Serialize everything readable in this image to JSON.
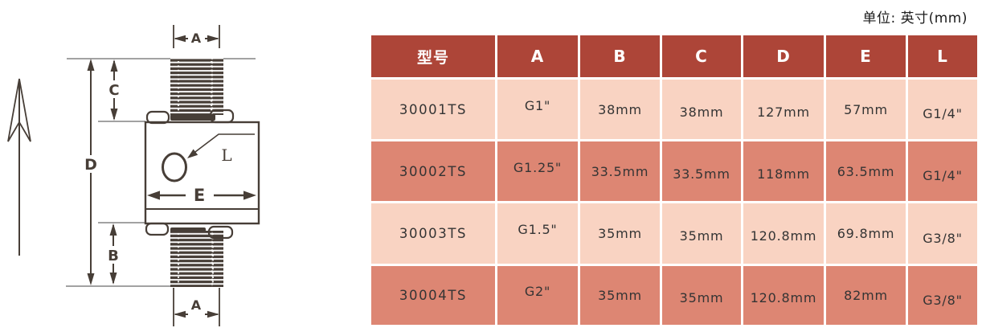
{
  "unit_note": "单位: 英寸(mm)",
  "colors": {
    "background": "#ffffff",
    "diagram_line": "#473e37",
    "extension_line": "#949494",
    "header_bg": "#ad4538",
    "header_text": "#ffffff",
    "row_light_bg": "#f9d3c2",
    "row_dark_bg": "#dd8673",
    "cell_text": "#343434"
  },
  "diagram": {
    "labels": {
      "a_top": "A",
      "c": "C",
      "d": "D",
      "b": "B",
      "a_bottom": "A",
      "e": "E",
      "l": "L"
    }
  },
  "table": {
    "headers": [
      "型号",
      "A",
      "B",
      "C",
      "D",
      "E",
      "L"
    ],
    "rows": [
      [
        "30001TS",
        "G1\"",
        "38mm",
        "38mm",
        "127mm",
        "57mm",
        "G1/4\""
      ],
      [
        "30002TS",
        "G1.25\"",
        "33.5mm",
        "33.5mm",
        "118mm",
        "63.5mm",
        "G1/4\""
      ],
      [
        "30003TS",
        "G1.5\"",
        "35mm",
        "35mm",
        "120.8mm",
        "69.8mm",
        "G3/8\""
      ],
      [
        "30004TS",
        "G2\"",
        "35mm",
        "35mm",
        "120.8mm",
        "82mm",
        "G3/8\""
      ]
    ]
  }
}
